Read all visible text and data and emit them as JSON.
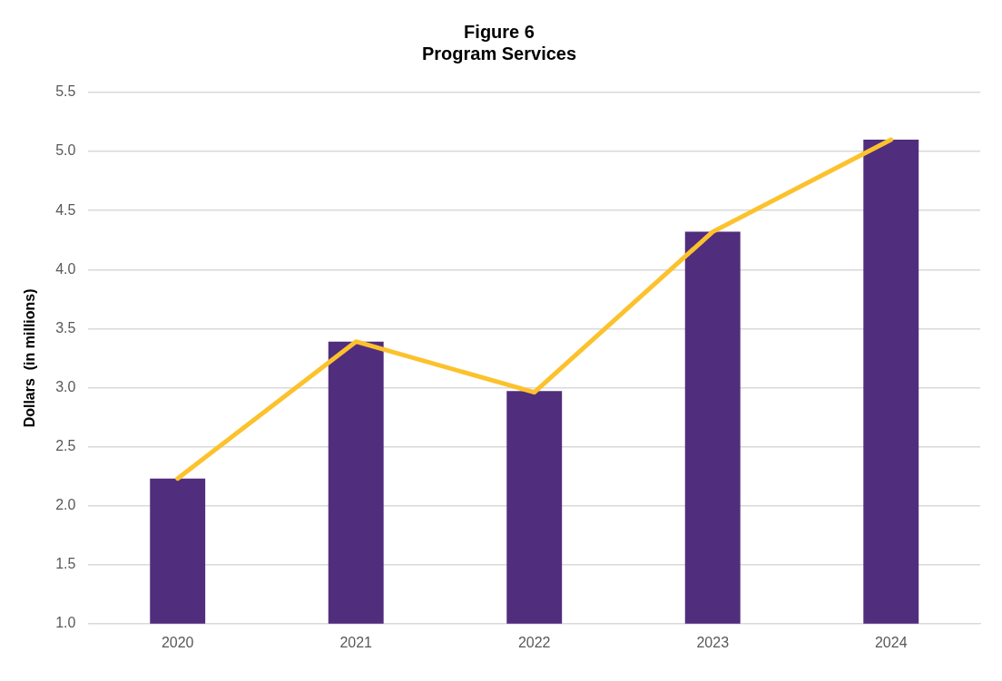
{
  "chart_data": {
    "type": "bar",
    "title": "Figure 6\nProgram Services",
    "ylabel": "Dollars  (in millions)",
    "categories": [
      "2020",
      "2021",
      "2022",
      "2023",
      "2024"
    ],
    "series": [
      {
        "color": "#512d7d",
        "values": [
          2.23,
          3.39,
          2.97,
          4.32,
          5.1
        ]
      },
      {
        "type": "line",
        "color": "#fcc22d",
        "values": [
          2.23,
          3.39,
          2.96,
          4.32,
          5.1
        ]
      }
    ],
    "ylim": [
      1,
      5.5
    ],
    "yticks": [
      {
        "value": 1,
        "label": "1.0"
      },
      {
        "value": 1.5,
        "label": "1.5"
      },
      {
        "value": 2,
        "label": "2.0"
      },
      {
        "value": 2.5,
        "label": "2.5"
      },
      {
        "value": 3,
        "label": "3.0"
      },
      {
        "value": 3.5,
        "label": "3.5"
      },
      {
        "value": 4,
        "label": "4.0"
      },
      {
        "value": 4.5,
        "label": "4.5"
      },
      {
        "value": 5,
        "label": "5.0"
      },
      {
        "value": 5.5,
        "label": "5.5"
      }
    ],
    "grid": "y",
    "legend": false,
    "marker": "none"
  }
}
